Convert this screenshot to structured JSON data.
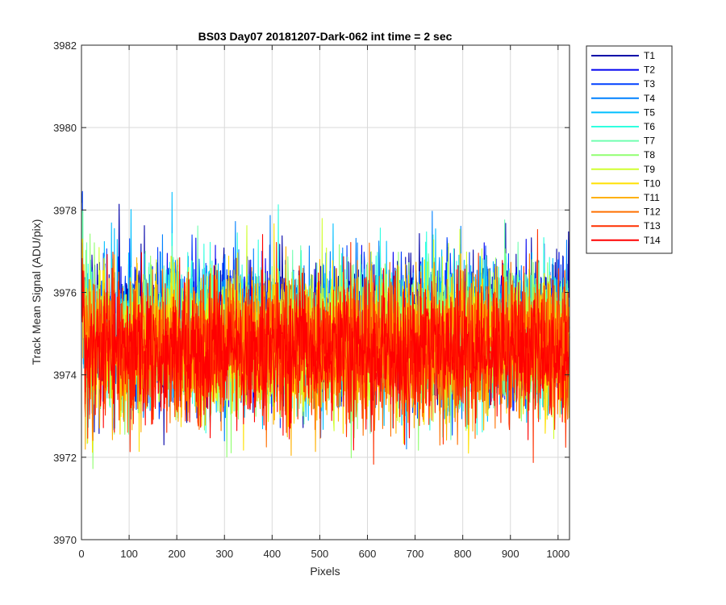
{
  "chart_data": {
    "type": "line",
    "title": "BS03 Day07 20181207-Dark-062 int time = 2 sec",
    "xlabel": "Pixels",
    "ylabel": "Track Mean Signal (ADU/pix)",
    "xlim": [
      0,
      1024
    ],
    "ylim": [
      3970,
      3982
    ],
    "xticks": [
      "0",
      "100",
      "200",
      "300",
      "400",
      "500",
      "600",
      "700",
      "800",
      "900",
      "1000"
    ],
    "yticks": [
      "3970",
      "3972",
      "3974",
      "3976",
      "3978",
      "3980",
      "3982"
    ],
    "grid": true,
    "legend_position": "outside-top-right",
    "x_count": 1024,
    "series": [
      {
        "name": "T1",
        "color": "#0000a8",
        "mean": 3975.2,
        "noise": 0.85,
        "min": 3972.3,
        "max": 3979.1
      },
      {
        "name": "T2",
        "color": "#0000f0",
        "mean": 3975.1,
        "noise": 0.85,
        "min": 3972.2,
        "max": 3979.1
      },
      {
        "name": "T3",
        "color": "#0040ff",
        "mean": 3975.1,
        "noise": 0.85,
        "min": 3972.3,
        "max": 3978.8
      },
      {
        "name": "T4",
        "color": "#0080ff",
        "mean": 3975.0,
        "noise": 0.85,
        "min": 3972.2,
        "max": 3978.6
      },
      {
        "name": "T5",
        "color": "#00bfff",
        "mean": 3975.0,
        "noise": 0.85,
        "min": 3972.2,
        "max": 3978.5
      },
      {
        "name": "T6",
        "color": "#30ffe0",
        "mean": 3974.9,
        "noise": 0.85,
        "min": 3971.2,
        "max": 3979.2
      },
      {
        "name": "T7",
        "color": "#70ffb0",
        "mean": 3974.9,
        "noise": 0.85,
        "min": 3971.0,
        "max": 3978.9
      },
      {
        "name": "T8",
        "color": "#90ff70",
        "mean": 3974.9,
        "noise": 0.85,
        "min": 3971.5,
        "max": 3979.0
      },
      {
        "name": "T9",
        "color": "#d0ff30",
        "mean": 3974.8,
        "noise": 0.85,
        "min": 3971.8,
        "max": 3978.5
      },
      {
        "name": "T10",
        "color": "#ffe000",
        "mean": 3974.7,
        "noise": 0.85,
        "min": 3971.8,
        "max": 3978.5
      },
      {
        "name": "T11",
        "color": "#ffb000",
        "mean": 3974.7,
        "noise": 0.85,
        "min": 3971.9,
        "max": 3978.3
      },
      {
        "name": "T12",
        "color": "#ff7000",
        "mean": 3974.6,
        "noise": 0.85,
        "min": 3971.1,
        "max": 3978.3
      },
      {
        "name": "T13",
        "color": "#ff3000",
        "mean": 3974.6,
        "noise": 0.85,
        "min": 3971.3,
        "max": 3978.6
      },
      {
        "name": "T14",
        "color": "#ff0000",
        "mean": 3974.6,
        "noise": 0.8,
        "min": 3971.3,
        "max": 3978.5
      }
    ]
  }
}
